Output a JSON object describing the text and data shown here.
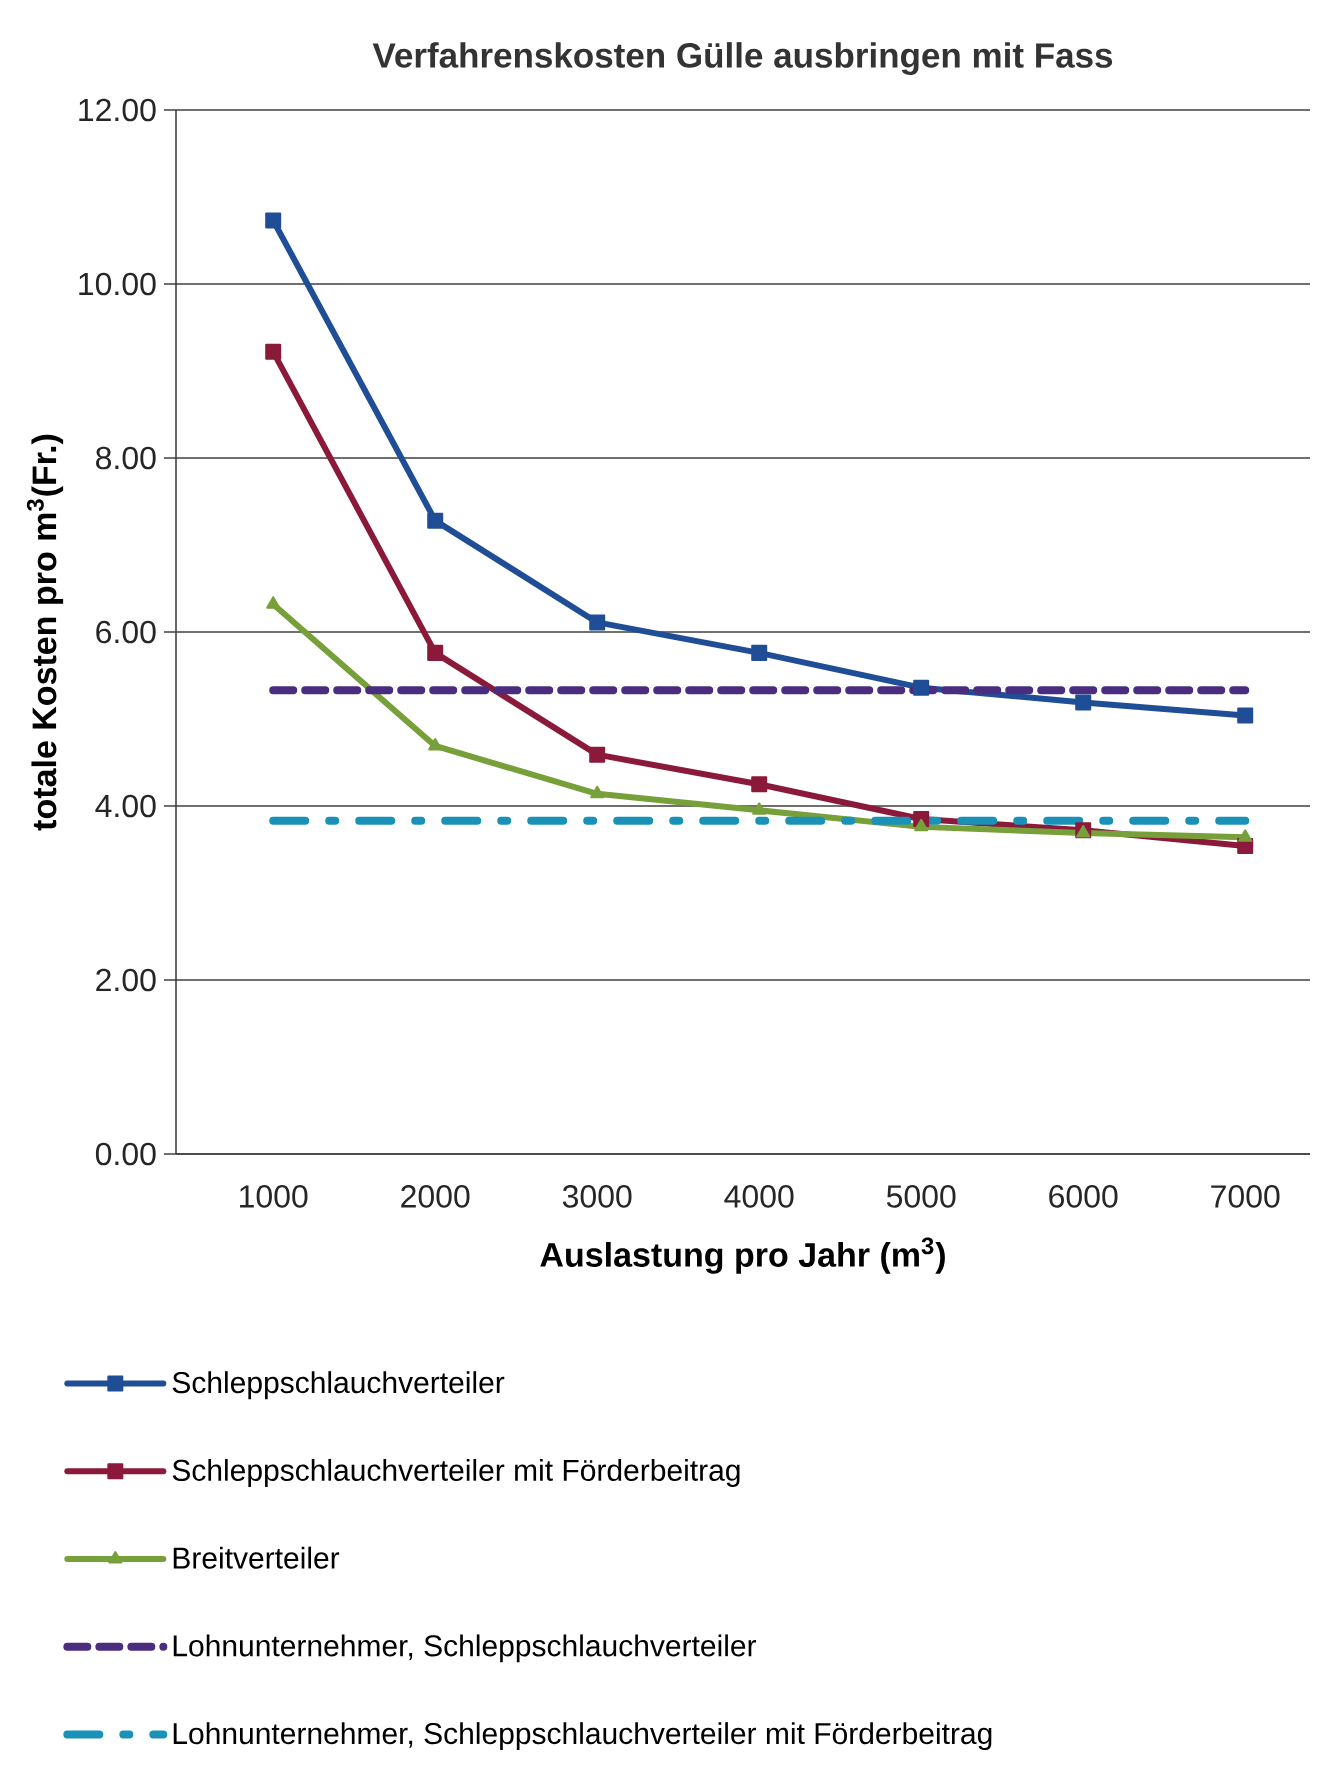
{
  "chart_data": {
    "type": "line",
    "title": "Verfahrenskosten Gülle ausbringen mit Fass",
    "xlabel": "Auslastung pro Jahr (m$^{3}$)",
    "ylabel": "totale Kosten pro m$^{3}$(Fr.)",
    "categories": [
      "1000",
      "2000",
      "3000",
      "4000",
      "5000",
      "6000",
      "7000"
    ],
    "ylim": [
      0,
      12
    ],
    "yticks": [
      {
        "value": 0,
        "label": "0.00"
      },
      {
        "value": 2,
        "label": "2.00"
      },
      {
        "value": 4,
        "label": "4.00"
      },
      {
        "value": 6,
        "label": "6.00"
      },
      {
        "value": 8,
        "label": "8.00"
      },
      {
        "value": 10,
        "label": "10.00"
      },
      {
        "value": 12,
        "label": "12.00"
      }
    ],
    "grid": "y",
    "legend": "bottom",
    "series": [
      {
        "name": "Schleppschlauchverteiler",
        "color": "#1f4e96",
        "marker": "square",
        "line_style": "solid",
        "values": [
          10.73,
          7.28,
          6.11,
          5.76,
          5.36,
          5.19,
          5.04
        ]
      },
      {
        "name": "Schleppschlauchverteiler mit Förderbeitrag",
        "color": "#8b1a3a",
        "marker": "square",
        "line_style": "solid",
        "values": [
          9.22,
          5.76,
          4.59,
          4.25,
          3.85,
          3.72,
          3.54
        ]
      },
      {
        "name": "Breitverteiler",
        "color": "#77a03a",
        "marker": "triangle",
        "line_style": "solid",
        "values": [
          6.32,
          4.69,
          4.14,
          3.95,
          3.76,
          3.69,
          3.64
        ]
      },
      {
        "name": "Lohnunternehmer, Schleppschlauchverteiler",
        "color": "#4b2d7f",
        "marker": "none",
        "line_style": "dashed",
        "values": [
          5.33,
          5.33,
          5.33,
          5.33,
          5.33,
          5.33,
          5.33
        ]
      },
      {
        "name": "Lohnunternehmer, Schleppschlauchverteiler mit Förderbeitrag",
        "color": "#1a92b8",
        "marker": "none",
        "line_style": "dashdot",
        "values": [
          3.83,
          3.83,
          3.83,
          3.83,
          3.83,
          3.83,
          3.83
        ]
      }
    ]
  }
}
